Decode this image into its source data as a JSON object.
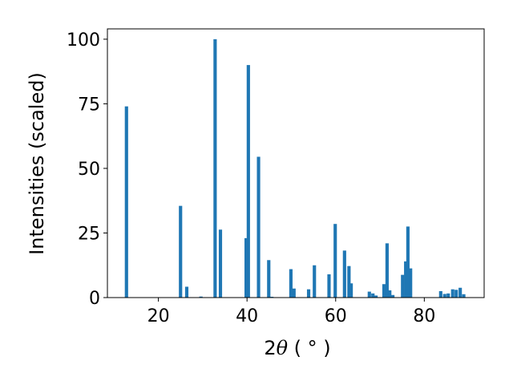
{
  "chart_data": {
    "type": "bar",
    "xlabel_prefix": "2",
    "xlabel_symbol": "θ",
    "xlabel_unit": " ( ° )",
    "ylabel": "Intensities (scaled)",
    "xlim": [
      8.5,
      93.5
    ],
    "ylim": [
      0,
      104
    ],
    "xticks": [
      20,
      40,
      60,
      80
    ],
    "yticks": [
      0,
      25,
      50,
      75,
      100
    ],
    "bar_width": 0.75,
    "bar_color": "#1f77b4",
    "grid": false,
    "bars": [
      {
        "x": 12.8,
        "y": 74
      },
      {
        "x": 25.0,
        "y": 35.5
      },
      {
        "x": 26.4,
        "y": 4.2
      },
      {
        "x": 29.6,
        "y": 0.4
      },
      {
        "x": 32.8,
        "y": 100
      },
      {
        "x": 34.0,
        "y": 26.3
      },
      {
        "x": 39.8,
        "y": 23
      },
      {
        "x": 40.3,
        "y": 90
      },
      {
        "x": 42.6,
        "y": 54.5
      },
      {
        "x": 44.9,
        "y": 14.5
      },
      {
        "x": 45.6,
        "y": 0.3
      },
      {
        "x": 49.9,
        "y": 11
      },
      {
        "x": 50.6,
        "y": 3.5
      },
      {
        "x": 53.9,
        "y": 3.2
      },
      {
        "x": 55.2,
        "y": 12.5
      },
      {
        "x": 58.5,
        "y": 9
      },
      {
        "x": 59.9,
        "y": 28.5
      },
      {
        "x": 62.0,
        "y": 18.2
      },
      {
        "x": 63.0,
        "y": 12.2
      },
      {
        "x": 63.5,
        "y": 5.5
      },
      {
        "x": 67.6,
        "y": 2.3
      },
      {
        "x": 68.4,
        "y": 1.6
      },
      {
        "x": 69.1,
        "y": 0.8
      },
      {
        "x": 70.9,
        "y": 5.2
      },
      {
        "x": 71.6,
        "y": 21
      },
      {
        "x": 72.2,
        "y": 2.8
      },
      {
        "x": 72.9,
        "y": 1.0
      },
      {
        "x": 75.1,
        "y": 8.8
      },
      {
        "x": 75.8,
        "y": 14
      },
      {
        "x": 76.3,
        "y": 27.5
      },
      {
        "x": 76.9,
        "y": 11.3
      },
      {
        "x": 83.7,
        "y": 2.5
      },
      {
        "x": 84.6,
        "y": 1.4
      },
      {
        "x": 85.4,
        "y": 1.6
      },
      {
        "x": 86.4,
        "y": 3.2
      },
      {
        "x": 87.2,
        "y": 3.0
      },
      {
        "x": 88.1,
        "y": 3.8
      },
      {
        "x": 88.9,
        "y": 1.3
      }
    ]
  }
}
